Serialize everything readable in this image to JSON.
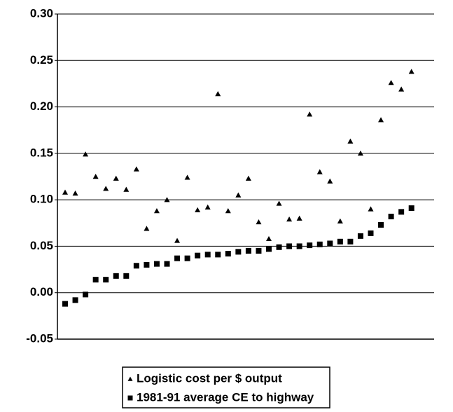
{
  "chart_data": {
    "type": "scatter",
    "series": [
      {
        "name": "Logistic cost per $ output",
        "color": "#000000",
        "marker": "triangle",
        "values": [
          0.108,
          0.107,
          0.149,
          0.125,
          0.112,
          0.123,
          0.111,
          0.133,
          0.069,
          0.088,
          0.1,
          0.056,
          0.124,
          0.089,
          0.092,
          0.214,
          0.088,
          0.105,
          0.123,
          0.076,
          0.058,
          0.096,
          0.079,
          0.08,
          0.192,
          0.13,
          0.12,
          0.077,
          0.163,
          0.15,
          0.09,
          0.186,
          0.226,
          0.219,
          0.238
        ]
      },
      {
        "name": "1981-91 average CE to highway",
        "color": "#000000",
        "marker": "square",
        "values": [
          -0.012,
          -0.008,
          -0.002,
          0.014,
          0.014,
          0.018,
          0.018,
          0.029,
          0.03,
          0.031,
          0.031,
          0.037,
          0.037,
          0.04,
          0.041,
          0.041,
          0.042,
          0.044,
          0.045,
          0.045,
          0.047,
          0.049,
          0.05,
          0.05,
          0.051,
          0.052,
          0.053,
          0.055,
          0.055,
          0.061,
          0.064,
          0.073,
          0.082,
          0.087,
          0.091
        ]
      }
    ],
    "ylim": [
      -0.05,
      0.3
    ],
    "yticks": [
      {
        "value": -0.05,
        "label": "-0.05"
      },
      {
        "value": 0,
        "label": "0.00"
      },
      {
        "value": 0.05,
        "label": "0.05"
      },
      {
        "value": 0.1,
        "label": "0.10"
      },
      {
        "value": 0.15,
        "label": "0.15"
      },
      {
        "value": 0.2,
        "label": "0.20"
      },
      {
        "value": 0.25,
        "label": "0.25"
      },
      {
        "value": 0.3,
        "label": "0.30"
      }
    ],
    "grid": true,
    "legend": "bottom"
  }
}
